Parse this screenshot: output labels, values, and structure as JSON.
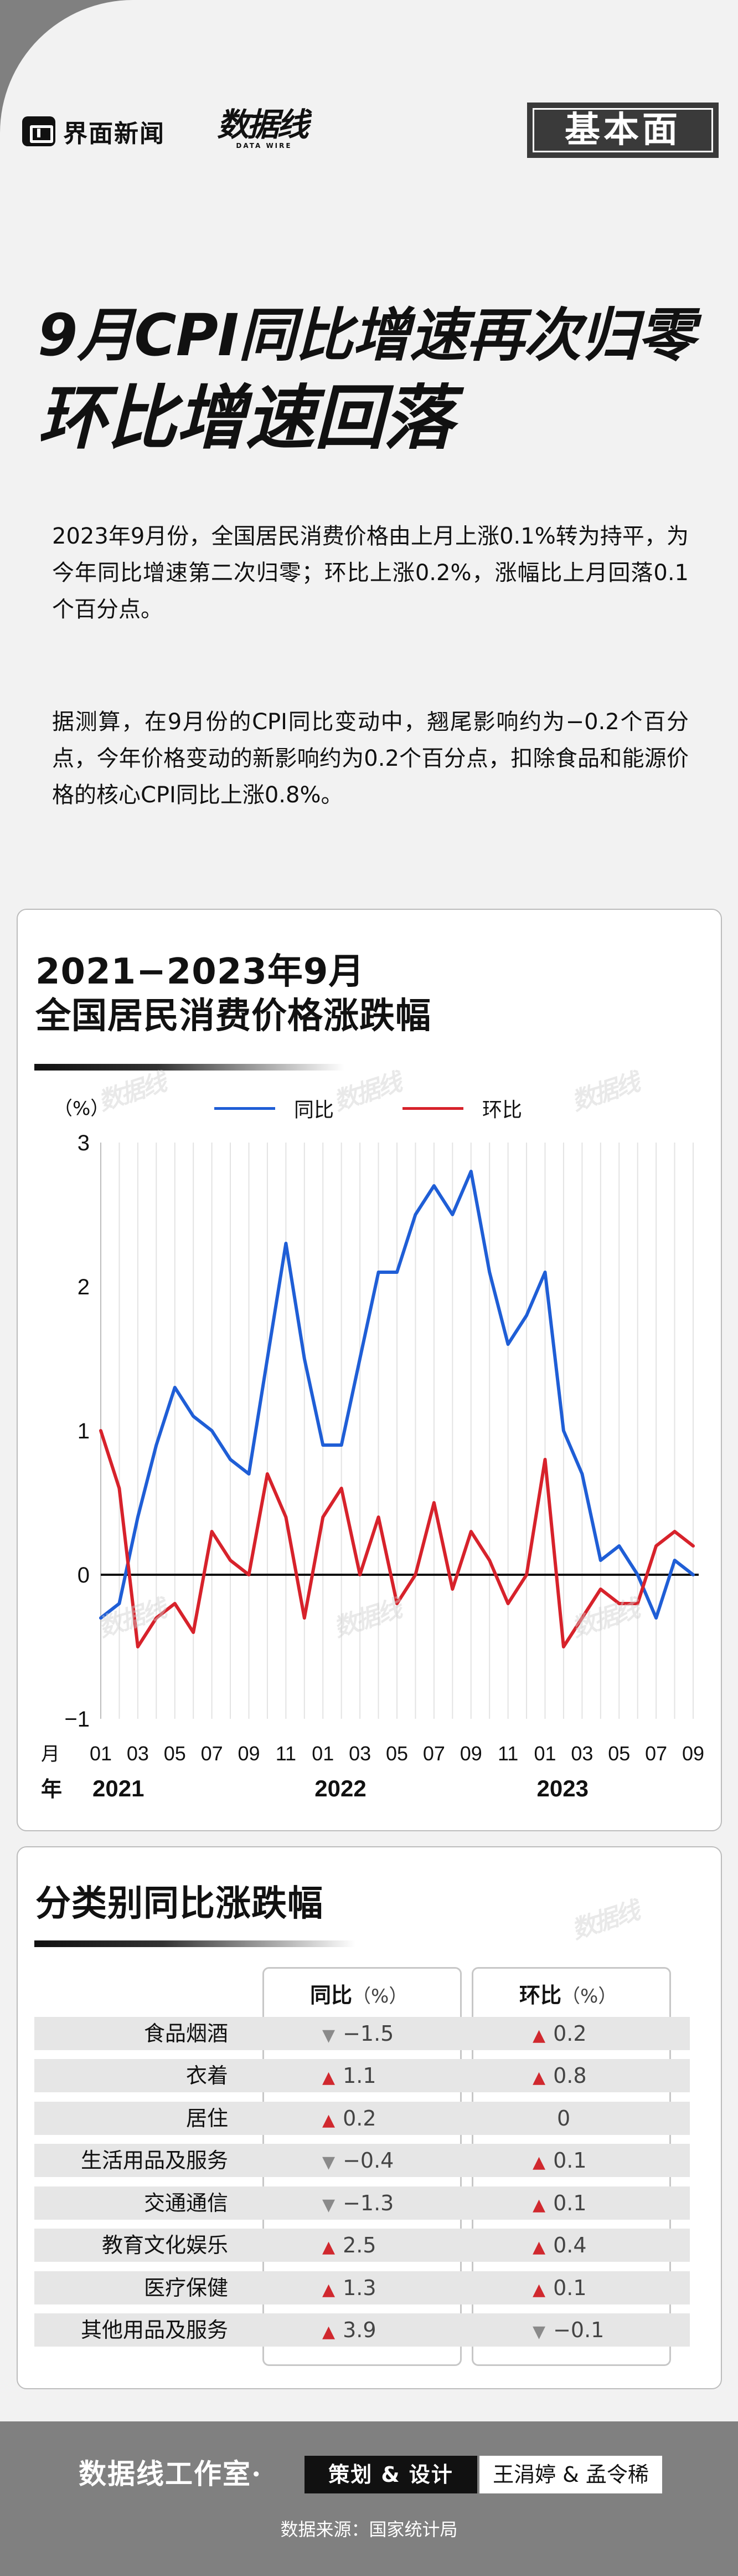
{
  "header": {
    "brand1": "界面新闻",
    "brand2": "数据线",
    "brand2_sub": "DATA WIRE",
    "badge": "基本面"
  },
  "title": {
    "line1": "9月CPI同比增速再次归零",
    "line2": "环比增速回落"
  },
  "paragraphs": [
    "2023年9月份，全国居民消费价格由上月上涨0.1%转为持平，为今年同比增速第二次归零；环比上涨0.2%，涨幅比上月回落0.1个百分点。",
    "据测算，在9月份的CPI同比变动中，翘尾影响约为−0.2个百分点，今年价格变动的新影响约为0.2个百分点，扣除食品和能源价格的核心CPI同比上涨0.8%。"
  ],
  "watermark": "数据线",
  "chart_card": {
    "title_line1": "2021−2023年9月",
    "title_line2": "全国居民消费价格涨跌幅"
  },
  "chart_data": {
    "type": "line",
    "ylabel": "（%）",
    "xlabel": "月",
    "year_label": "年",
    "ylim": [
      -1,
      3
    ],
    "yticks": [
      "3",
      "2",
      "1",
      "0",
      "−1"
    ],
    "ytick_values": [
      3,
      2,
      1,
      0,
      -1
    ],
    "x_tick_labels": [
      "01",
      "03",
      "05",
      "07",
      "09",
      "11",
      "01",
      "03",
      "05",
      "07",
      "09",
      "11",
      "01",
      "03",
      "05",
      "07",
      "09"
    ],
    "x_tick_indices": [
      0,
      2,
      4,
      6,
      8,
      10,
      12,
      14,
      16,
      18,
      20,
      22,
      24,
      26,
      28,
      30,
      32
    ],
    "years": [
      {
        "label": "2021",
        "index": 0
      },
      {
        "label": "2022",
        "index": 12
      },
      {
        "label": "2023",
        "index": 24
      }
    ],
    "grid": true,
    "legend_position": "top",
    "series": [
      {
        "name": "同比",
        "color": "#1f5ed6",
        "values": [
          -0.3,
          -0.2,
          0.4,
          0.9,
          1.3,
          1.1,
          1.0,
          0.8,
          0.7,
          1.5,
          2.3,
          1.5,
          0.9,
          0.9,
          1.5,
          2.1,
          2.1,
          2.5,
          2.7,
          2.5,
          2.8,
          2.1,
          1.6,
          1.8,
          2.1,
          1.0,
          0.7,
          0.1,
          0.2,
          0.0,
          -0.3,
          0.1,
          0.0
        ]
      },
      {
        "name": "环比",
        "color": "#d7222b",
        "values": [
          1.0,
          0.6,
          -0.5,
          -0.3,
          -0.2,
          -0.4,
          0.3,
          0.1,
          0.0,
          0.7,
          0.4,
          -0.3,
          0.4,
          0.6,
          0.0,
          0.4,
          -0.2,
          0.0,
          0.5,
          -0.1,
          0.3,
          0.1,
          -0.2,
          0.0,
          0.8,
          -0.5,
          -0.3,
          -0.1,
          -0.2,
          -0.2,
          0.2,
          0.3,
          0.2
        ]
      }
    ]
  },
  "table_card": {
    "title": "分类别同比涨跌幅",
    "col_yoy": "同比",
    "col_mom": "环比",
    "unit": "（%）",
    "rows": [
      {
        "category": "食品烟酒",
        "yoy": "−1.5",
        "yoy_dir": "down",
        "mom": "0.2",
        "mom_dir": "up"
      },
      {
        "category": "衣着",
        "yoy": "1.1",
        "yoy_dir": "up",
        "mom": "0.8",
        "mom_dir": "up"
      },
      {
        "category": "居住",
        "yoy": "0.2",
        "yoy_dir": "up",
        "mom": "0",
        "mom_dir": "none"
      },
      {
        "category": "生活用品及服务",
        "yoy": "−0.4",
        "yoy_dir": "down",
        "mom": "0.1",
        "mom_dir": "up"
      },
      {
        "category": "交通通信",
        "yoy": "−1.3",
        "yoy_dir": "down",
        "mom": "0.1",
        "mom_dir": "up"
      },
      {
        "category": "教育文化娱乐",
        "yoy": "2.5",
        "yoy_dir": "up",
        "mom": "0.4",
        "mom_dir": "up"
      },
      {
        "category": "医疗保健",
        "yoy": "1.3",
        "yoy_dir": "up",
        "mom": "0.1",
        "mom_dir": "up"
      },
      {
        "category": "其他用品及服务",
        "yoy": "3.9",
        "yoy_dir": "up",
        "mom": "−0.1",
        "mom_dir": "down"
      }
    ]
  },
  "footer": {
    "studio": "数据线工作室·",
    "role": "策划 & 设计",
    "people": "王涓婷 & 孟令稀",
    "source": "数据来源：国家统计局"
  },
  "colors": {
    "yoy_line": "#1f5ed6",
    "mom_line": "#d7222b",
    "up_arrow": "#d0282e",
    "down_arrow": "#8a8a8a"
  }
}
